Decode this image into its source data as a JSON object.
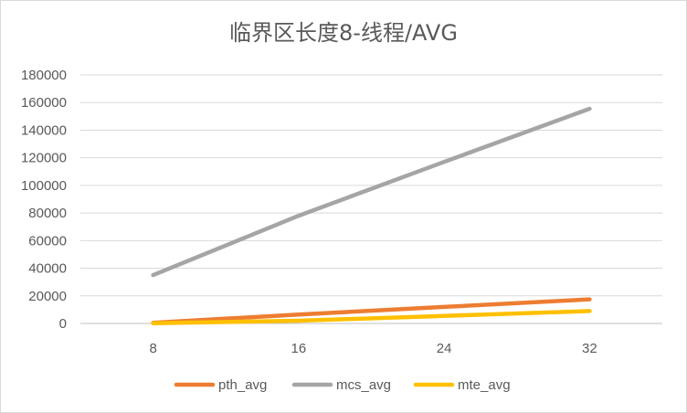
{
  "chart_data": {
    "type": "line",
    "title": "临界区长度8-线程/AVG",
    "categories": [
      "8",
      "16",
      "24",
      "32"
    ],
    "series": [
      {
        "name": "pth_avg",
        "color": "#ed7d31",
        "values": [
          500,
          6500,
          12000,
          17500
        ]
      },
      {
        "name": "mcs_avg",
        "color": "#a5a5a5",
        "values": [
          35000,
          78000,
          117000,
          155500
        ]
      },
      {
        "name": "mte_avg",
        "color": "#ffc000",
        "values": [
          200,
          2000,
          5500,
          9000
        ]
      }
    ],
    "ylim": [
      0,
      180000
    ],
    "yticks": [
      "0",
      "20000",
      "40000",
      "60000",
      "80000",
      "100000",
      "120000",
      "140000",
      "160000",
      "180000"
    ],
    "grid": true,
    "legend_position": "bottom"
  }
}
